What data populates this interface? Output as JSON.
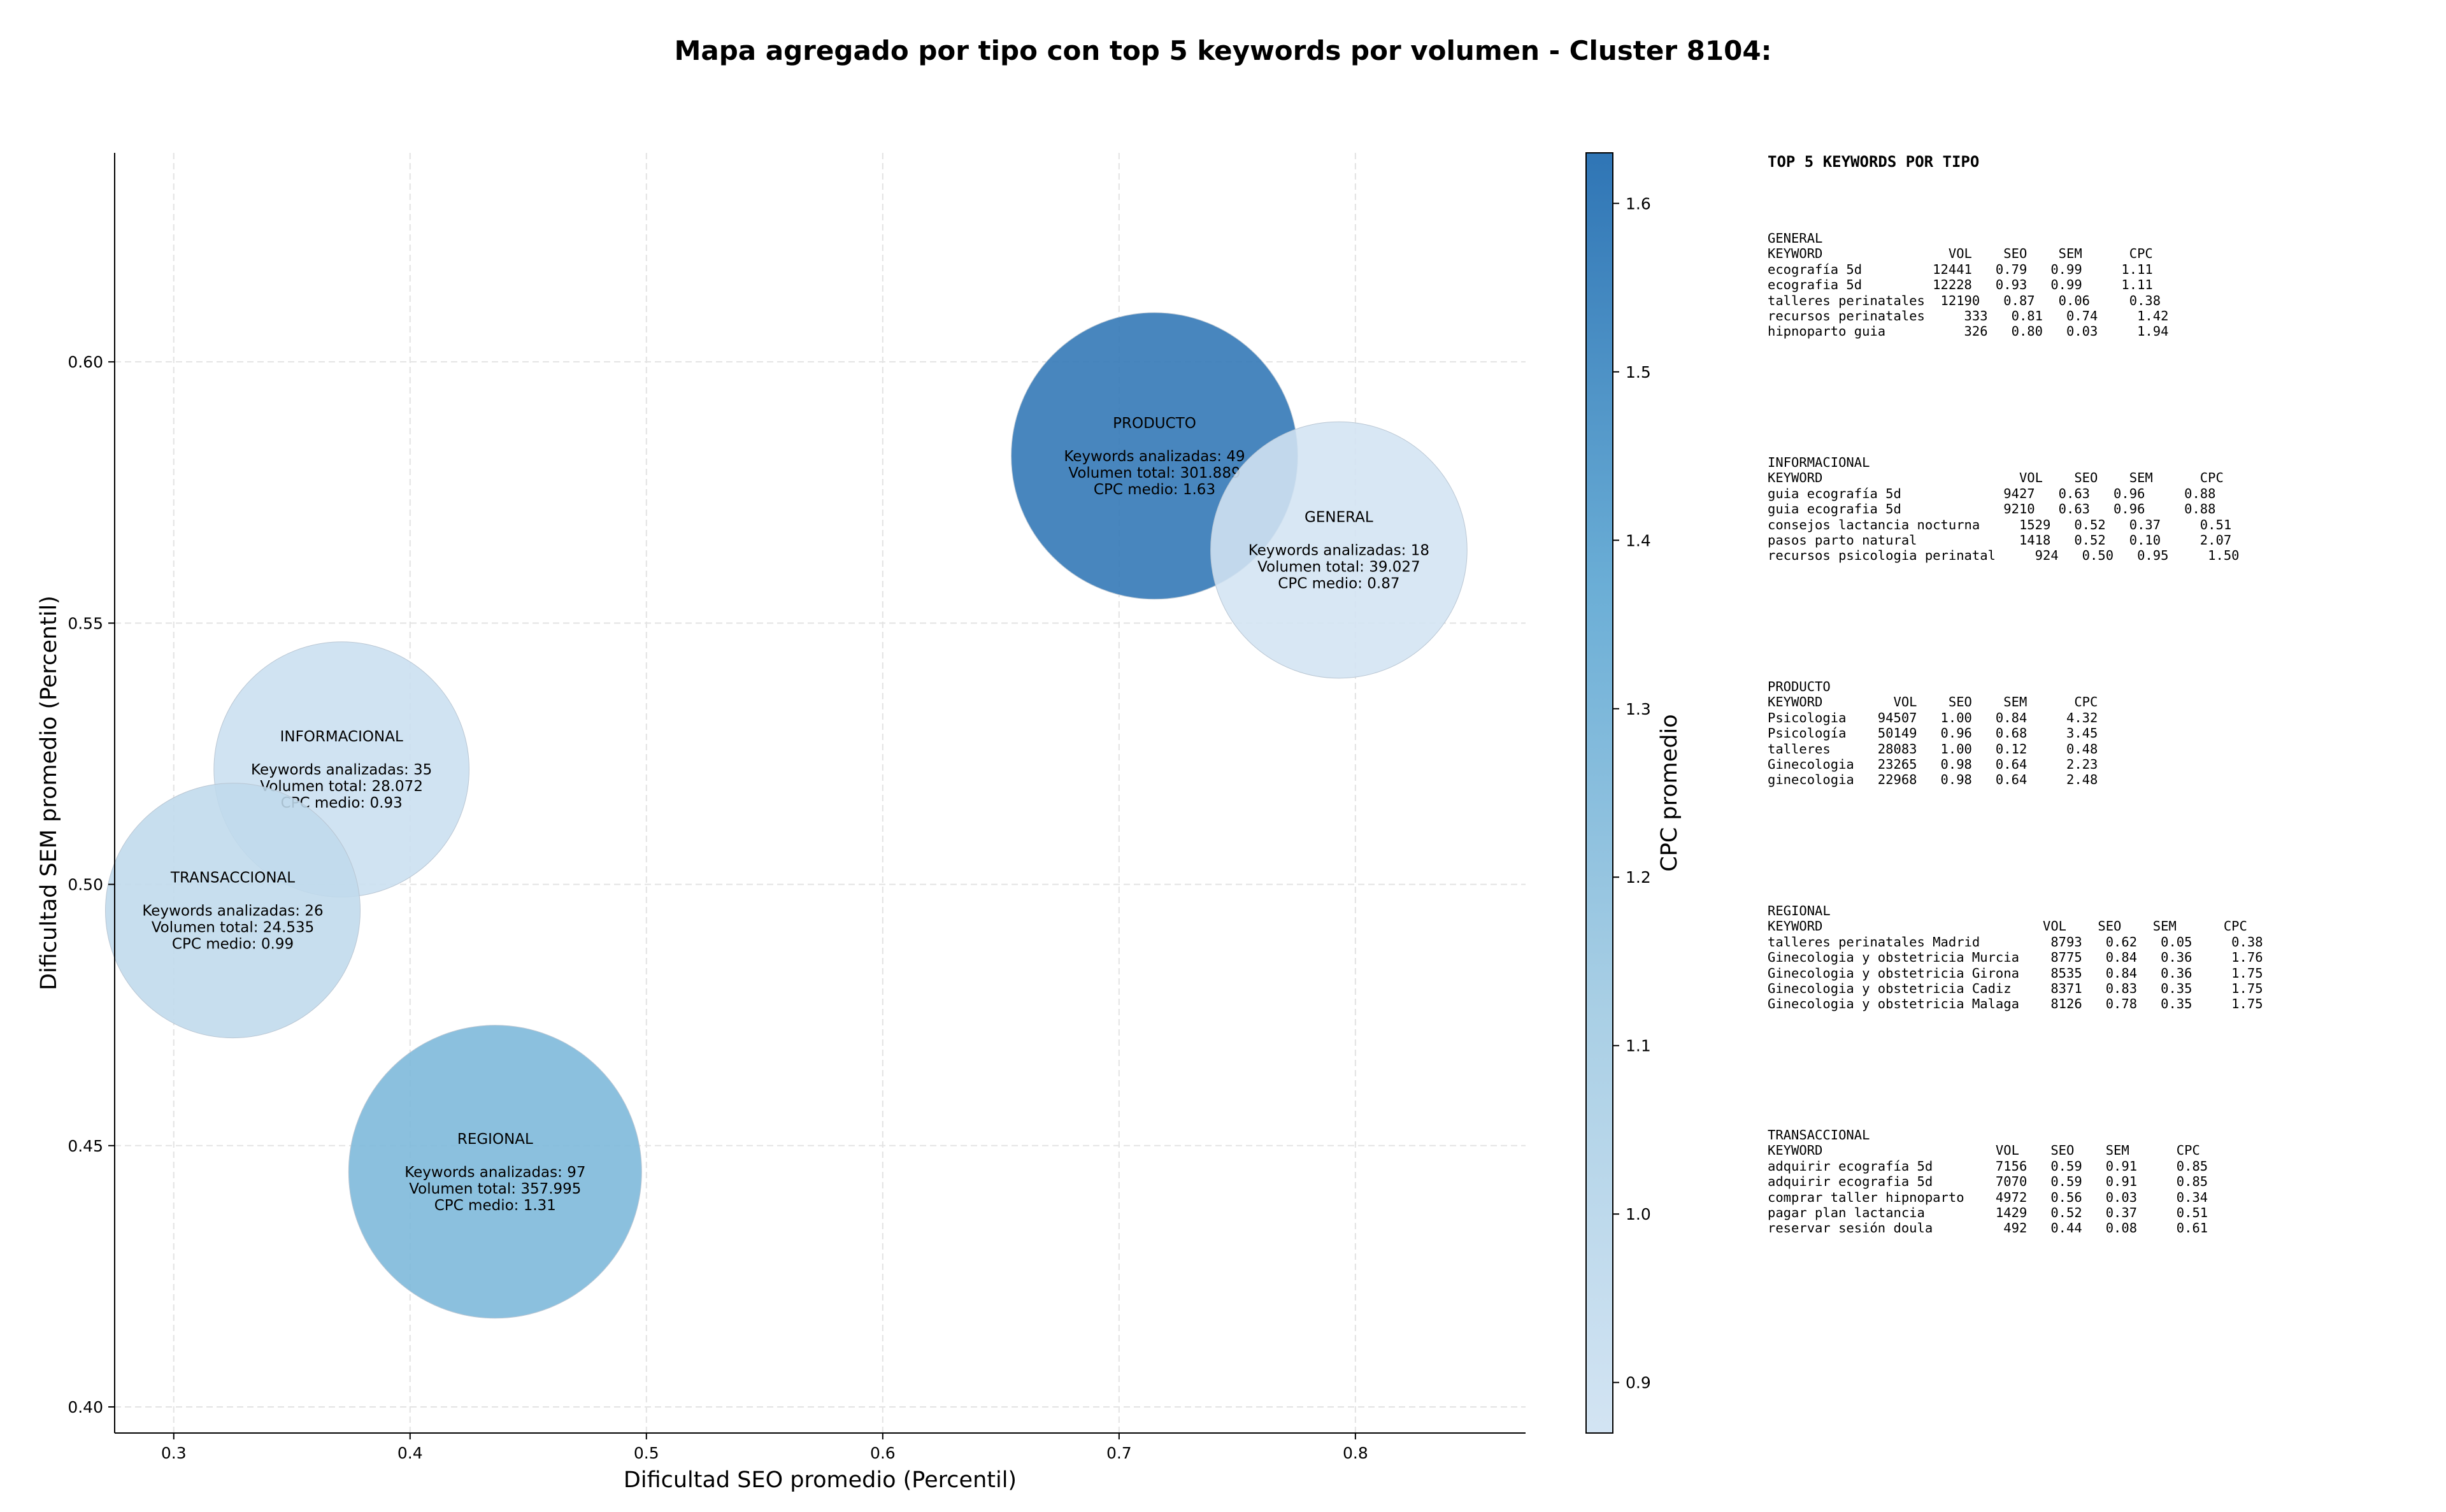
{
  "chart_data": {
    "type": "scatter",
    "title": "Mapa agregado por tipo con top 5 keywords por volumen - Cluster 8104:",
    "xlabel": "Dificultad SEO promedio (Percentil)",
    "ylabel": "Dificultad SEM promedio (Percentil)",
    "xlim": [
      0.275,
      0.872
    ],
    "ylim": [
      0.395,
      0.64
    ],
    "xticks": [
      "0.3",
      "0.4",
      "0.5",
      "0.6",
      "0.7",
      "0.8"
    ],
    "yticks": [
      "0.40",
      "0.45",
      "0.50",
      "0.55",
      "0.60"
    ],
    "grid": true,
    "colorbar": {
      "label": "CPC promedio",
      "min": 0.87,
      "max": 1.63,
      "ticks": [
        "0.9",
        "1.0",
        "1.1",
        "1.2",
        "1.3",
        "1.4",
        "1.5",
        "1.6"
      ],
      "colors": [
        "#d3e4f3",
        "#a9cfe5",
        "#6baed6",
        "#2f75b5"
      ]
    },
    "points": [
      {
        "label": "PRODUCTO",
        "x": 0.715,
        "y": 0.582,
        "keywords": "Keywords analizadas: 49",
        "volume": "Volumen total: 301.889",
        "cpc_text": "CPC medio: 1.63",
        "cpc": 1.63,
        "volume_value": 301889
      },
      {
        "label": "GENERAL",
        "x": 0.793,
        "y": 0.564,
        "keywords": "Keywords analizadas: 18",
        "volume": "Volumen total: 39.027",
        "cpc_text": "CPC medio: 0.87",
        "cpc": 0.87,
        "volume_value": 39027
      },
      {
        "label": "INFORMACIONAL",
        "x": 0.371,
        "y": 0.522,
        "keywords": "Keywords analizadas: 35",
        "volume": "Volumen total: 28.072",
        "cpc_text": "CPC medio: 0.93",
        "cpc": 0.93,
        "volume_value": 28072
      },
      {
        "label": "TRANSACCIONAL",
        "x": 0.325,
        "y": 0.495,
        "keywords": "Keywords analizadas: 26",
        "volume": "Volumen total: 24.535",
        "cpc_text": "CPC medio: 0.99",
        "cpc": 0.99,
        "volume_value": 24535
      },
      {
        "label": "REGIONAL",
        "x": 0.436,
        "y": 0.445,
        "keywords": "Keywords analizadas: 97",
        "volume": "Volumen total: 357.995",
        "cpc_text": "CPC medio: 1.31",
        "cpc": 1.31,
        "volume_value": 357995
      }
    ]
  },
  "panel": {
    "title": "TOP 5 KEYWORDS POR TIPO",
    "sections": [
      {
        "name": "GENERAL",
        "text": "GENERAL\nKEYWORD                VOL    SEO    SEM      CPC\necografía 5d         12441   0.79   0.99     1.11\necografia 5d         12228   0.93   0.99     1.11\ntalleres perinatales  12190   0.87   0.06     0.38\nrecursos perinatales     333   0.81   0.74     1.42\nhipnoparto guia          326   0.80   0.03     1.94"
      },
      {
        "name": "INFORMACIONAL",
        "text": "INFORMACIONAL\nKEYWORD                         VOL    SEO    SEM      CPC\nguia ecografía 5d             9427   0.63   0.96     0.88\nguia ecografia 5d             9210   0.63   0.96     0.88\nconsejos lactancia nocturna     1529   0.52   0.37     0.51\npasos parto natural             1418   0.52   0.10     2.07\nrecursos psicologia perinatal     924   0.50   0.95     1.50"
      },
      {
        "name": "PRODUCTO",
        "text": "PRODUCTO\nKEYWORD         VOL    SEO    SEM      CPC\nPsicologia    94507   1.00   0.84     4.32\nPsicología    50149   0.96   0.68     3.45\ntalleres      28083   1.00   0.12     0.48\nGinecologia   23265   0.98   0.64     2.23\nginecologia   22968   0.98   0.64     2.48"
      },
      {
        "name": "REGIONAL",
        "text": "REGIONAL\nKEYWORD                            VOL    SEO    SEM      CPC\ntalleres perinatales Madrid         8793   0.62   0.05     0.38\nGinecologia y obstetricia Murcia    8775   0.84   0.36     1.76\nGinecologia y obstetricia Girona    8535   0.84   0.36     1.75\nGinecologia y obstetricia Cadiz     8371   0.83   0.35     1.75\nGinecologia y obstetricia Malaga    8126   0.78   0.35     1.75"
      },
      {
        "name": "TRANSACCIONAL",
        "text": "TRANSACCIONAL\nKEYWORD                      VOL    SEO    SEM      CPC\nadquirir ecografía 5d        7156   0.59   0.91     0.85\nadquirir ecografia 5d        7070   0.59   0.91     0.85\ncomprar taller hipnoparto    4972   0.56   0.03     0.34\npagar plan lactancia         1429   0.52   0.37     0.51\nreservar sesión doula         492   0.44   0.08     0.61"
      }
    ]
  }
}
